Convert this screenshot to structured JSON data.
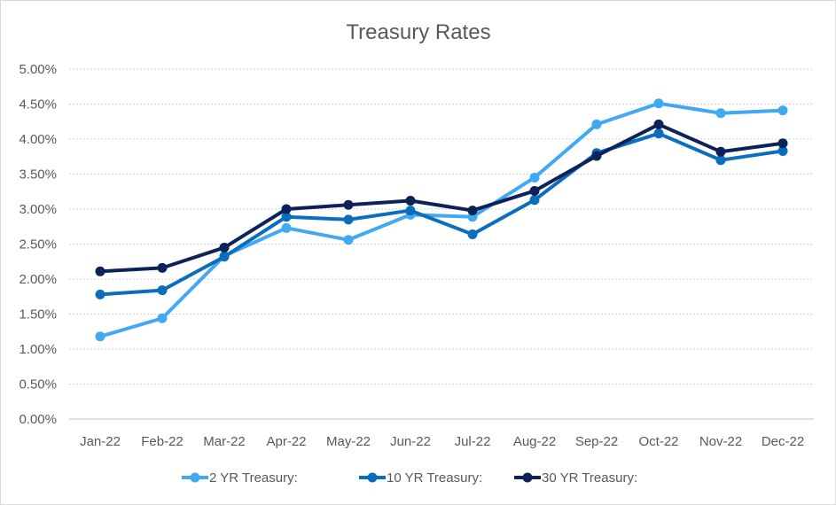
{
  "chart_data": {
    "type": "line",
    "title": "Treasury Rates",
    "xlabel": "",
    "ylabel": "",
    "categories": [
      "Jan-22",
      "Feb-22",
      "Mar-22",
      "Apr-22",
      "May-22",
      "Jun-22",
      "Jul-22",
      "Aug-22",
      "Sep-22",
      "Oct-22",
      "Nov-22",
      "Dec-22"
    ],
    "ylim": [
      0,
      5
    ],
    "yticks": [
      0,
      0.5,
      1,
      1.5,
      2,
      2.5,
      3,
      3.5,
      4,
      4.5,
      5
    ],
    "ytick_labels": [
      "0.00%",
      "0.50%",
      "1.00%",
      "1.50%",
      "2.00%",
      "2.50%",
      "3.00%",
      "3.50%",
      "4.00%",
      "4.50%",
      "5.00%"
    ],
    "grid": true,
    "legend_position": "bottom",
    "series": [
      {
        "name": "2 YR Treasury:",
        "color": "#41a8f2",
        "values": [
          1.18,
          1.44,
          2.33,
          2.73,
          2.56,
          2.92,
          2.89,
          3.45,
          4.21,
          4.51,
          4.37,
          4.41
        ]
      },
      {
        "name": "10 YR Treasury:",
        "color": "#0a6ebd",
        "values": [
          1.78,
          1.84,
          2.32,
          2.89,
          2.85,
          2.98,
          2.64,
          3.13,
          3.8,
          4.08,
          3.7,
          3.83
        ]
      },
      {
        "name": "30 YR Treasury:",
        "color": "#0d2258",
        "values": [
          2.11,
          2.16,
          2.45,
          3.0,
          3.06,
          3.12,
          2.98,
          3.26,
          3.76,
          4.21,
          3.82,
          3.94
        ]
      }
    ]
  }
}
